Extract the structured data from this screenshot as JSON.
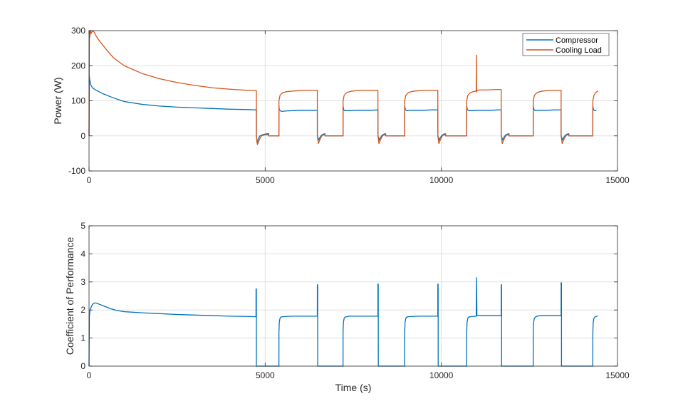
{
  "chart_data": [
    {
      "type": "line",
      "title": "",
      "xlabel": "",
      "ylabel": "Power (W)",
      "xlim": [
        0,
        15000
      ],
      "ylim": [
        -100,
        300
      ],
      "xticks": [
        0,
        5000,
        10000,
        15000
      ],
      "yticks": [
        -100,
        0,
        100,
        200,
        300
      ],
      "grid": true,
      "legend": "top-right",
      "series": [
        {
          "name": "Compressor",
          "color": "#0072BD",
          "x": [
            0,
            10,
            20,
            40,
            60,
            100,
            200,
            400,
            700,
            1000,
            1500,
            2000,
            2500,
            3000,
            3500,
            4000,
            4500,
            4750,
            4751,
            4770,
            4800,
            4850,
            4900,
            4950,
            5000,
            5050,
            5100,
            5101,
            5390,
            5391,
            5400,
            5430,
            5460,
            5500,
            5600,
            5800,
            6000,
            6200,
            6400,
            6480,
            6481,
            6520,
            6550,
            6600,
            6650,
            6700,
            6701,
            7210,
            7211,
            7230,
            7260,
            7300,
            7400,
            7600,
            7800,
            8000,
            8200,
            8201,
            8240,
            8270,
            8320,
            8370,
            8420,
            8421,
            8960,
            8961,
            8980,
            9010,
            9050,
            9150,
            9300,
            9500,
            9700,
            9900,
            9901,
            9940,
            9970,
            10020,
            10070,
            10120,
            10121,
            10720,
            10721,
            10740,
            10770,
            10810,
            10900,
            11000,
            11050,
            11051,
            11200,
            11400,
            11600,
            11700,
            11701,
            11740,
            11770,
            11820,
            11870,
            11920,
            11921,
            12610,
            12611,
            12630,
            12660,
            12700,
            12800,
            13000,
            13200,
            13400,
            13401,
            13440,
            13470,
            13520,
            13570,
            13620,
            13621,
            14300,
            14301,
            14320,
            14350,
            14400
          ],
          "y": [
            0,
            170,
            160,
            150,
            143,
            137,
            130,
            120,
            108,
            98,
            90,
            85,
            82,
            80,
            78,
            76,
            75,
            74,
            0,
            -20,
            -10,
            0,
            2,
            4,
            5,
            6,
            6,
            0,
            0,
            85,
            75,
            72,
            70,
            70,
            71,
            72,
            73,
            73,
            73,
            73,
            0,
            -12,
            -5,
            2,
            5,
            6,
            0,
            0,
            85,
            75,
            72,
            72,
            72,
            73,
            73,
            73,
            74,
            0,
            -12,
            -5,
            2,
            5,
            6,
            0,
            0,
            85,
            75,
            72,
            72,
            73,
            73,
            73,
            74,
            74,
            0,
            -12,
            -5,
            2,
            5,
            6,
            0,
            0,
            85,
            75,
            72,
            72,
            72,
            73,
            73,
            73,
            73,
            73,
            74,
            74,
            0,
            -12,
            -5,
            2,
            5,
            6,
            0,
            0,
            85,
            75,
            72,
            72,
            73,
            73,
            74,
            74,
            0,
            -12,
            -5,
            2,
            5,
            6,
            0,
            0,
            85,
            75,
            72,
            72
          ]
        },
        {
          "name": "Cooling Load",
          "color": "#D95319",
          "x": [
            0,
            10,
            20,
            40,
            60,
            100,
            150,
            200,
            300,
            500,
            700,
            1000,
            1500,
            2000,
            2500,
            3000,
            3500,
            4000,
            4500,
            4750,
            4751,
            4780,
            4820,
            4860,
            4900,
            4950,
            5000,
            5050,
            5100,
            5101,
            5390,
            5391,
            5420,
            5460,
            5500,
            5600,
            5800,
            6000,
            6200,
            6480,
            6481,
            6510,
            6550,
            6590,
            6630,
            6680,
            6700,
            6701,
            7210,
            7211,
            7240,
            7280,
            7330,
            7430,
            7600,
            7800,
            8000,
            8200,
            8201,
            8230,
            8270,
            8310,
            8350,
            8400,
            8420,
            8421,
            8960,
            8961,
            8990,
            9030,
            9080,
            9180,
            9400,
            9600,
            9900,
            9901,
            9930,
            9970,
            10010,
            10050,
            10100,
            10120,
            10121,
            10720,
            10721,
            10750,
            10790,
            10840,
            10940,
            10990,
            11000,
            11001,
            11020,
            11100,
            11300,
            11500,
            11700,
            11701,
            11730,
            11770,
            11810,
            11850,
            11900,
            11920,
            11921,
            12610,
            12611,
            12640,
            12680,
            12730,
            12830,
            13000,
            13200,
            13400,
            13401,
            13430,
            13470,
            13510,
            13550,
            13600,
            13620,
            13621,
            14300,
            14301,
            14330,
            14370,
            14420,
            14450
          ],
          "y": [
            0,
            300,
            280,
            300,
            292,
            300,
            295,
            285,
            270,
            245,
            222,
            200,
            178,
            163,
            152,
            144,
            137,
            133,
            130,
            129,
            0,
            -25,
            -15,
            -5,
            0,
            2,
            3,
            3,
            3,
            0,
            0,
            100,
            115,
            120,
            123,
            126,
            128,
            129,
            130,
            130,
            0,
            -22,
            -12,
            -3,
            2,
            3,
            3,
            0,
            0,
            100,
            115,
            120,
            124,
            127,
            129,
            130,
            130,
            130,
            0,
            -22,
            -12,
            -3,
            2,
            3,
            3,
            0,
            0,
            100,
            115,
            120,
            124,
            127,
            129,
            130,
            130,
            0,
            -22,
            -12,
            -3,
            2,
            3,
            3,
            0,
            0,
            100,
            115,
            120,
            124,
            127,
            128,
            230,
            125,
            130,
            131,
            131,
            132,
            132,
            0,
            -22,
            -12,
            -3,
            2,
            3,
            3,
            0,
            0,
            100,
            115,
            120,
            124,
            127,
            129,
            130,
            130,
            0,
            -22,
            -12,
            -3,
            2,
            3,
            3,
            0,
            0,
            100,
            115,
            122,
            126,
            128
          ]
        }
      ]
    },
    {
      "type": "line",
      "title": "",
      "xlabel": "Time (s)",
      "ylabel": "Coefficient of Performance",
      "xlim": [
        0,
        15000
      ],
      "ylim": [
        0,
        5
      ],
      "xticks": [
        0,
        5000,
        10000,
        15000
      ],
      "yticks": [
        0,
        1,
        2,
        3,
        4,
        5
      ],
      "grid": true,
      "series": [
        {
          "name": "",
          "color": "#0072BD",
          "x": [
            0,
            10,
            30,
            60,
            100,
            150,
            200,
            300,
            400,
            600,
            800,
            1000,
            1500,
            2000,
            2500,
            3000,
            3500,
            4000,
            4500,
            4740,
            4741,
            4750,
            4751,
            5390,
            5391,
            5400,
            5420,
            5450,
            5500,
            5600,
            5800,
            6000,
            6300,
            6480,
            6481,
            6490,
            6491,
            7210,
            7211,
            7220,
            7240,
            7270,
            7320,
            7400,
            7600,
            7900,
            8200,
            8201,
            8210,
            8211,
            8960,
            8961,
            8970,
            8990,
            9020,
            9070,
            9150,
            9400,
            9700,
            9900,
            9901,
            9910,
            9911,
            10720,
            10721,
            10730,
            10750,
            10780,
            10830,
            10900,
            10990,
            11000,
            11010,
            11020,
            11200,
            11500,
            11700,
            11701,
            11710,
            11711,
            12610,
            12611,
            12620,
            12640,
            12670,
            12720,
            12800,
            13000,
            13300,
            13400,
            13401,
            13410,
            13411,
            14300,
            14301,
            14310,
            14330,
            14360,
            14410,
            14440
          ],
          "y": [
            0,
            1.8,
            2.0,
            2.1,
            2.2,
            2.25,
            2.25,
            2.2,
            2.15,
            2.05,
            1.98,
            1.94,
            1.9,
            1.87,
            1.84,
            1.82,
            1.8,
            1.78,
            1.77,
            1.76,
            2.75,
            2.75,
            0,
            0,
            1.2,
            1.55,
            1.7,
            1.75,
            1.76,
            1.77,
            1.78,
            1.78,
            1.78,
            1.78,
            2.9,
            2.9,
            0,
            0,
            1.2,
            1.55,
            1.7,
            1.75,
            1.76,
            1.78,
            1.78,
            1.78,
            1.78,
            2.92,
            2.92,
            0,
            0,
            1.2,
            1.55,
            1.7,
            1.75,
            1.76,
            1.77,
            1.78,
            1.78,
            1.78,
            2.92,
            2.92,
            0,
            0,
            1.2,
            1.55,
            1.7,
            1.75,
            1.76,
            1.77,
            1.78,
            3.15,
            1.8,
            1.8,
            1.8,
            1.8,
            1.8,
            2.9,
            2.9,
            0,
            0,
            1.2,
            1.55,
            1.7,
            1.75,
            1.78,
            1.8,
            1.8,
            1.8,
            1.8,
            2.97,
            2.97,
            0,
            0,
            1.2,
            1.55,
            1.7,
            1.75,
            1.78,
            1.78
          ]
        }
      ]
    }
  ]
}
